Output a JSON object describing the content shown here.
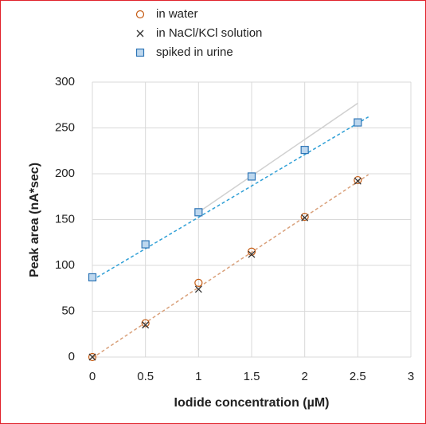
{
  "chart_data": {
    "type": "scatter",
    "x_label": "Iodide concentration (µM)",
    "y_label": "Peak area (nA*sec)",
    "x": [
      0,
      0.5,
      1,
      1.5,
      2,
      2.5
    ],
    "series": [
      {
        "name": "in water",
        "color": "#c55a11",
        "marker": "circle",
        "values": [
          0,
          37,
          81,
          115,
          153,
          193
        ]
      },
      {
        "name": "in NaCl/KCl solution",
        "color": "#333333",
        "marker": "cross",
        "values": [
          0,
          35,
          74,
          112,
          152,
          192
        ]
      },
      {
        "name": "spiked in urine",
        "color": "#2e75b6",
        "marker": "square",
        "values": [
          87,
          123,
          158,
          197,
          226,
          256
        ]
      }
    ],
    "trendlines": [
      {
        "color": "#d9a07a",
        "dashed": true,
        "x": [
          0,
          2.6
        ],
        "values": [
          -1,
          199
        ]
      },
      {
        "color": "#d0d0d0",
        "dashed": false,
        "x": [
          1,
          2.5
        ],
        "values": [
          158,
          277
        ]
      },
      {
        "color": "#2e9fd6",
        "dashed": true,
        "x": [
          0,
          2.6
        ],
        "values": [
          84,
          262
        ]
      }
    ],
    "xlim": [
      0,
      3
    ],
    "xticks": [
      0,
      0.5,
      1,
      1.5,
      2,
      2.5,
      3
    ],
    "ylim": [
      0,
      300
    ],
    "yticks": [
      0,
      50,
      100,
      150,
      200,
      250,
      300
    ],
    "grid": true,
    "legend": "top"
  }
}
